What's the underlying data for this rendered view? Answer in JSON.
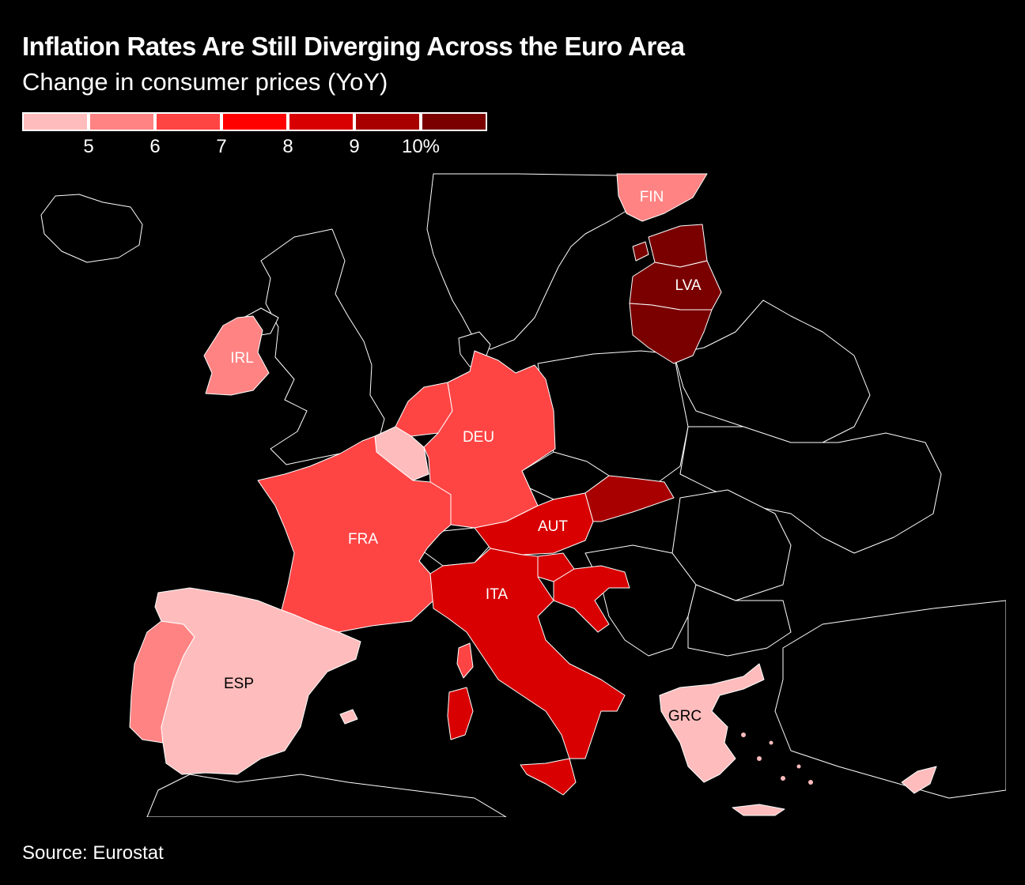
{
  "header": {
    "title": "Inflation Rates Are Still Diverging Across the Euro Area",
    "subtitle": "Change in consumer prices (YoY)"
  },
  "legend": {
    "colors": [
      "#ffbcbc",
      "#ff8383",
      "#ff4444",
      "#ff0000",
      "#d80000",
      "#a80000",
      "#7a0000"
    ],
    "ticks": [
      "5",
      "6",
      "7",
      "8",
      "9",
      "10%"
    ]
  },
  "countries": {
    "fin": {
      "label": "FIN",
      "color": "#ff8383"
    },
    "lva": {
      "label": "LVA",
      "color": "#7a0000"
    },
    "irl": {
      "label": "IRL",
      "color": "#ff8383"
    },
    "deu": {
      "label": "DEU",
      "color": "#ff4444"
    },
    "fra": {
      "label": "FRA",
      "color": "#ff4444"
    },
    "aut": {
      "label": "AUT",
      "color": "#d80000"
    },
    "ita": {
      "label": "ITA",
      "color": "#d80000"
    },
    "esp": {
      "label": "ESP",
      "color": "#ffbcbc"
    },
    "grc": {
      "label": "GRC",
      "color": "#ffbcbc"
    }
  },
  "footer": {
    "source": "Source: Eurostat"
  }
}
